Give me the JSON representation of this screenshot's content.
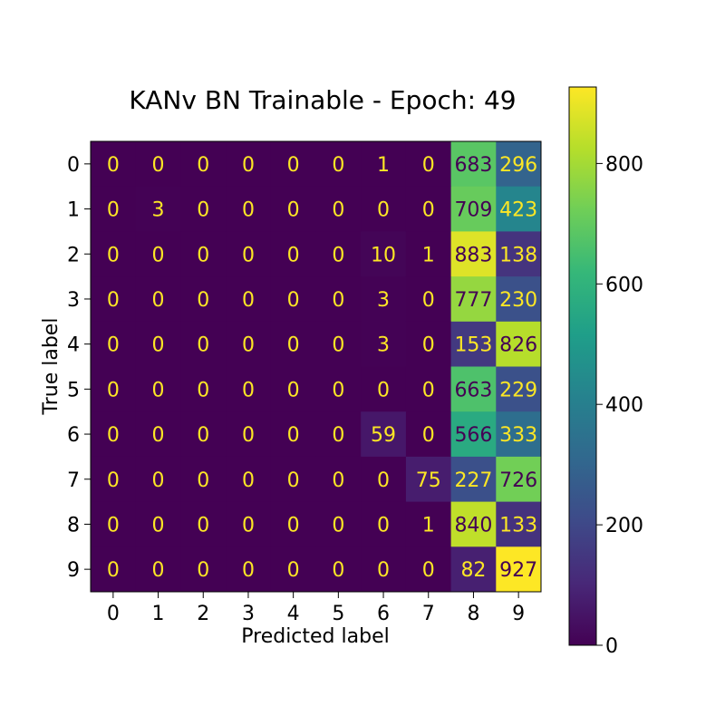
{
  "chart_data": {
    "type": "heatmap",
    "title": "KANv BN Trainable - Epoch: 49",
    "xlabel": "Predicted label",
    "ylabel": "True label",
    "x_tick_labels": [
      "0",
      "1",
      "2",
      "3",
      "4",
      "5",
      "6",
      "7",
      "8",
      "9"
    ],
    "y_tick_labels": [
      "0",
      "1",
      "2",
      "3",
      "4",
      "5",
      "6",
      "7",
      "8",
      "9"
    ],
    "matrix": [
      [
        0,
        0,
        0,
        0,
        0,
        0,
        1,
        0,
        683,
        296
      ],
      [
        0,
        3,
        0,
        0,
        0,
        0,
        0,
        0,
        709,
        423
      ],
      [
        0,
        0,
        0,
        0,
        0,
        0,
        10,
        1,
        883,
        138
      ],
      [
        0,
        0,
        0,
        0,
        0,
        0,
        3,
        0,
        777,
        230
      ],
      [
        0,
        0,
        0,
        0,
        0,
        0,
        3,
        0,
        153,
        826
      ],
      [
        0,
        0,
        0,
        0,
        0,
        0,
        0,
        0,
        663,
        229
      ],
      [
        0,
        0,
        0,
        0,
        0,
        0,
        59,
        0,
        566,
        333
      ],
      [
        0,
        0,
        0,
        0,
        0,
        0,
        0,
        75,
        227,
        726
      ],
      [
        0,
        0,
        0,
        0,
        0,
        0,
        0,
        1,
        840,
        133
      ],
      [
        0,
        0,
        0,
        0,
        0,
        0,
        0,
        0,
        82,
        927
      ]
    ],
    "colorbar": {
      "colormap": "viridis",
      "range": [
        0,
        927
      ],
      "ticks": [
        0,
        200,
        400,
        600,
        800
      ],
      "tick_labels": [
        "0",
        "200",
        "400",
        "600",
        "800"
      ]
    },
    "text_colors": {
      "light": "#fde725",
      "dark": "#440154"
    }
  }
}
